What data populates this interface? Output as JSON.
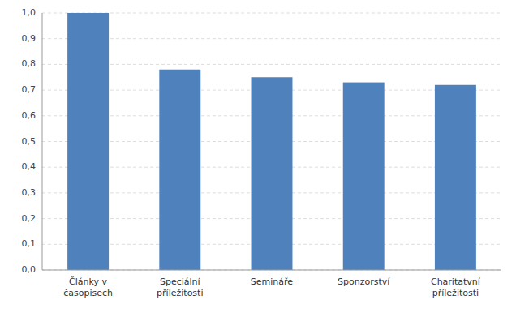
{
  "chart_data": {
    "type": "bar",
    "categories": [
      "Články v\nčasopisech",
      "Speciální\npříležitosti",
      "Semináře",
      "Sponzorství",
      "Charitatvní\npříležitosti"
    ],
    "values": [
      1.0,
      0.78,
      0.75,
      0.73,
      0.72
    ],
    "color": "#4F81BD",
    "ylim": [
      0.0,
      1.0
    ],
    "yticks": [
      {
        "value": 0.0,
        "label": "0,0"
      },
      {
        "value": 0.1,
        "label": "0,1"
      },
      {
        "value": 0.2,
        "label": "0,2"
      },
      {
        "value": 0.3,
        "label": "0,3"
      },
      {
        "value": 0.4,
        "label": "0,4"
      },
      {
        "value": 0.5,
        "label": "0,5"
      },
      {
        "value": 0.6,
        "label": "0,6"
      },
      {
        "value": 0.7,
        "label": "0,7"
      },
      {
        "value": 0.8,
        "label": "0,8"
      },
      {
        "value": 0.9,
        "label": "0,9"
      },
      {
        "value": 1.0,
        "label": "1,0"
      }
    ],
    "grid": true
  }
}
